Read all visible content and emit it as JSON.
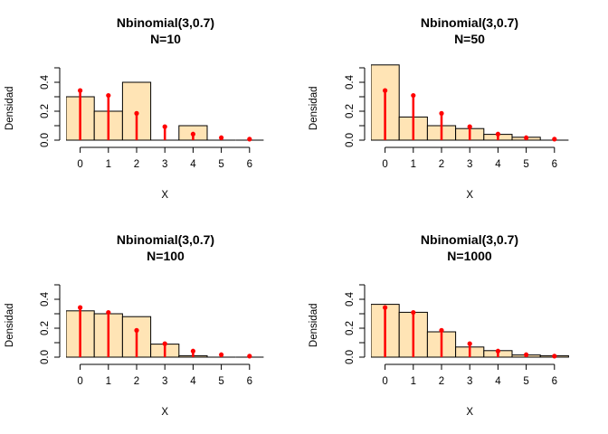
{
  "colors": {
    "bar_fill": "#FFE4B5",
    "bar_stroke": "#000000",
    "pmf_line": "#FF0000",
    "axis": "#000000"
  },
  "chart_data": [
    {
      "type": "bar",
      "title": "Nbinomial(3,0.7)",
      "subtitle": "N=10",
      "xlabel": "X",
      "ylabel": "Densidad",
      "xlim": [
        -0.5,
        6.5
      ],
      "ylim": [
        0,
        0.5
      ],
      "x_ticks": [
        0,
        1,
        2,
        3,
        4,
        5,
        6
      ],
      "y_ticks": [
        0.0,
        0.2,
        0.4
      ],
      "y_tick_labels": [
        "0.0",
        "0.2",
        "0.4"
      ],
      "grid": false,
      "bars": {
        "categories": [
          0,
          1,
          2,
          3,
          4,
          5,
          6
        ],
        "values": [
          0.3,
          0.2,
          0.4,
          0.0,
          0.1,
          0.0,
          0.0
        ]
      },
      "theoretical": {
        "x": [
          0,
          1,
          2,
          3,
          4,
          5,
          6
        ],
        "y": [
          0.343,
          0.309,
          0.185,
          0.093,
          0.042,
          0.017,
          0.007
        ]
      }
    },
    {
      "type": "bar",
      "title": "Nbinomial(3,0.7)",
      "subtitle": "N=50",
      "xlabel": "X",
      "ylabel": "Densidad",
      "xlim": [
        -0.5,
        6.5
      ],
      "ylim": [
        0,
        0.5
      ],
      "x_ticks": [
        0,
        1,
        2,
        3,
        4,
        5,
        6
      ],
      "y_ticks": [
        0.0,
        0.2,
        0.4
      ],
      "y_tick_labels": [
        "0.0",
        "0.2",
        "0.4"
      ],
      "grid": false,
      "bars": {
        "categories": [
          0,
          1,
          2,
          3,
          4,
          5,
          6
        ],
        "values": [
          0.52,
          0.16,
          0.1,
          0.08,
          0.04,
          0.02,
          0.0
        ]
      },
      "theoretical": {
        "x": [
          0,
          1,
          2,
          3,
          4,
          5,
          6
        ],
        "y": [
          0.343,
          0.309,
          0.185,
          0.093,
          0.042,
          0.017,
          0.007
        ]
      }
    },
    {
      "type": "bar",
      "title": "Nbinomial(3,0.7)",
      "subtitle": "N=100",
      "xlabel": "X",
      "ylabel": "Densidad",
      "xlim": [
        -0.5,
        6.5
      ],
      "ylim": [
        0,
        0.5
      ],
      "x_ticks": [
        0,
        1,
        2,
        3,
        4,
        5,
        6
      ],
      "y_ticks": [
        0.0,
        0.2,
        0.4
      ],
      "y_tick_labels": [
        "0.0",
        "0.2",
        "0.4"
      ],
      "grid": false,
      "bars": {
        "categories": [
          0,
          1,
          2,
          3,
          4,
          5,
          6
        ],
        "values": [
          0.32,
          0.3,
          0.28,
          0.09,
          0.01,
          0.0,
          0.0
        ]
      },
      "theoretical": {
        "x": [
          0,
          1,
          2,
          3,
          4,
          5,
          6
        ],
        "y": [
          0.343,
          0.309,
          0.185,
          0.093,
          0.042,
          0.017,
          0.007
        ]
      }
    },
    {
      "type": "bar",
      "title": "Nbinomial(3,0.7)",
      "subtitle": "N=1000",
      "xlabel": "X",
      "ylabel": "Densidad",
      "xlim": [
        -0.5,
        6.5
      ],
      "ylim": [
        0,
        0.5
      ],
      "x_ticks": [
        0,
        1,
        2,
        3,
        4,
        5,
        6
      ],
      "y_ticks": [
        0.0,
        0.2,
        0.4
      ],
      "y_tick_labels": [
        "0.0",
        "0.2",
        "0.4"
      ],
      "grid": false,
      "bars": {
        "categories": [
          0,
          1,
          2,
          3,
          4,
          5,
          6
        ],
        "values": [
          0.365,
          0.31,
          0.175,
          0.07,
          0.045,
          0.015,
          0.01
        ]
      },
      "theoretical": {
        "x": [
          0,
          1,
          2,
          3,
          4,
          5,
          6
        ],
        "y": [
          0.343,
          0.309,
          0.185,
          0.093,
          0.042,
          0.017,
          0.007
        ]
      }
    }
  ]
}
